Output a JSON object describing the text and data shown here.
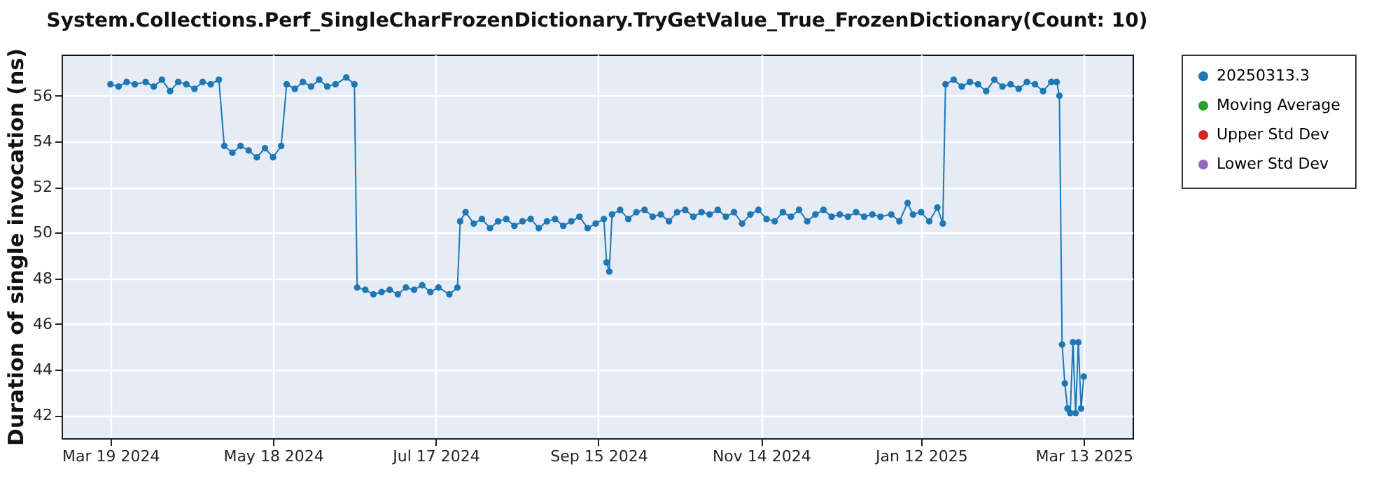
{
  "chart_data": {
    "type": "line",
    "title": "System.Collections.Perf_SingleCharFrozenDictionary.TryGetValue_True_FrozenDictionary(Count: 10)",
    "ylabel": "Duration of single invocation (ns)",
    "xlim": [
      "2024-03-01",
      "2025-03-31"
    ],
    "xticks": [
      {
        "value": "2024-03-19",
        "label": "Mar 19 2024"
      },
      {
        "value": "2024-05-18",
        "label": "May 18 2024"
      },
      {
        "value": "2024-07-17",
        "label": "Jul 17 2024"
      },
      {
        "value": "2024-09-15",
        "label": "Sep 15 2024"
      },
      {
        "value": "2024-11-14",
        "label": "Nov 14 2024"
      },
      {
        "value": "2025-01-12",
        "label": "Jan 12 2025"
      },
      {
        "value": "2025-03-13",
        "label": "Mar 13 2025"
      }
    ],
    "ylim": [
      41,
      57.8
    ],
    "yticks": [
      42,
      44,
      46,
      48,
      50,
      52,
      54,
      56
    ],
    "grid": true,
    "legend": "right",
    "marker": "circle",
    "series": [
      {
        "name": "20250313.3",
        "color": "#1f77b4",
        "x": [
          "2024-03-19",
          "2024-03-22",
          "2024-03-25",
          "2024-03-28",
          "2024-04-01",
          "2024-04-04",
          "2024-04-07",
          "2024-04-10",
          "2024-04-13",
          "2024-04-16",
          "2024-04-19",
          "2024-04-22",
          "2024-04-25",
          "2024-04-28",
          "2024-04-30",
          "2024-05-03",
          "2024-05-06",
          "2024-05-09",
          "2024-05-12",
          "2024-05-15",
          "2024-05-18",
          "2024-05-21",
          "2024-05-23",
          "2024-05-26",
          "2024-05-29",
          "2024-06-01",
          "2024-06-04",
          "2024-06-07",
          "2024-06-10",
          "2024-06-14",
          "2024-06-17",
          "2024-06-18",
          "2024-06-21",
          "2024-06-24",
          "2024-06-27",
          "2024-06-30",
          "2024-07-03",
          "2024-07-06",
          "2024-07-09",
          "2024-07-12",
          "2024-07-15",
          "2024-07-18",
          "2024-07-22",
          "2024-07-25",
          "2024-07-26",
          "2024-07-28",
          "2024-07-31",
          "2024-08-03",
          "2024-08-06",
          "2024-08-09",
          "2024-08-12",
          "2024-08-15",
          "2024-08-18",
          "2024-08-21",
          "2024-08-24",
          "2024-08-27",
          "2024-08-30",
          "2024-09-02",
          "2024-09-05",
          "2024-09-08",
          "2024-09-11",
          "2024-09-14",
          "2024-09-17",
          "2024-09-18",
          "2024-09-19",
          "2024-09-20",
          "2024-09-23",
          "2024-09-26",
          "2024-09-29",
          "2024-10-02",
          "2024-10-05",
          "2024-10-08",
          "2024-10-11",
          "2024-10-14",
          "2024-10-17",
          "2024-10-20",
          "2024-10-23",
          "2024-10-26",
          "2024-10-29",
          "2024-11-01",
          "2024-11-04",
          "2024-11-07",
          "2024-11-10",
          "2024-11-13",
          "2024-11-16",
          "2024-11-19",
          "2024-11-22",
          "2024-11-25",
          "2024-11-28",
          "2024-12-01",
          "2024-12-04",
          "2024-12-07",
          "2024-12-10",
          "2024-12-13",
          "2024-12-16",
          "2024-12-19",
          "2024-12-22",
          "2024-12-25",
          "2024-12-28",
          "2025-01-01",
          "2025-01-04",
          "2025-01-07",
          "2025-01-09",
          "2025-01-12",
          "2025-01-15",
          "2025-01-18",
          "2025-01-20",
          "2025-01-21",
          "2025-01-24",
          "2025-01-27",
          "2025-01-30",
          "2025-02-02",
          "2025-02-05",
          "2025-02-08",
          "2025-02-11",
          "2025-02-14",
          "2025-02-17",
          "2025-02-20",
          "2025-02-23",
          "2025-02-26",
          "2025-03-01",
          "2025-03-03",
          "2025-03-04",
          "2025-03-05",
          "2025-03-06",
          "2025-03-07",
          "2025-03-08",
          "2025-03-09",
          "2025-03-10",
          "2025-03-11",
          "2025-03-12",
          "2025-03-13"
        ],
        "values": [
          56.5,
          56.4,
          56.6,
          56.5,
          56.6,
          56.4,
          56.7,
          56.2,
          56.6,
          56.5,
          56.3,
          56.6,
          56.5,
          56.7,
          53.8,
          53.5,
          53.8,
          53.6,
          53.3,
          53.7,
          53.3,
          53.8,
          56.5,
          56.3,
          56.6,
          56.4,
          56.7,
          56.4,
          56.5,
          56.8,
          56.5,
          47.6,
          47.5,
          47.3,
          47.4,
          47.5,
          47.3,
          47.6,
          47.5,
          47.7,
          47.4,
          47.6,
          47.3,
          47.6,
          50.5,
          50.9,
          50.4,
          50.6,
          50.2,
          50.5,
          50.6,
          50.3,
          50.5,
          50.6,
          50.2,
          50.5,
          50.6,
          50.3,
          50.5,
          50.7,
          50.2,
          50.4,
          50.6,
          48.7,
          48.3,
          50.8,
          51.0,
          50.6,
          50.9,
          51.0,
          50.7,
          50.8,
          50.5,
          50.9,
          51.0,
          50.7,
          50.9,
          50.8,
          51.0,
          50.7,
          50.9,
          50.4,
          50.8,
          51.0,
          50.6,
          50.5,
          50.9,
          50.7,
          51.0,
          50.5,
          50.8,
          51.0,
          50.7,
          50.8,
          50.7,
          50.9,
          50.7,
          50.8,
          50.7,
          50.8,
          50.5,
          51.3,
          50.8,
          50.9,
          50.5,
          51.1,
          50.4,
          56.5,
          56.7,
          56.4,
          56.6,
          56.5,
          56.2,
          56.7,
          56.4,
          56.5,
          56.3,
          56.6,
          56.5,
          56.2,
          56.6,
          56.6,
          56.0,
          45.1,
          43.4,
          42.3,
          42.1,
          45.2,
          42.1,
          45.2,
          42.3,
          43.7
        ]
      },
      {
        "name": "Moving Average",
        "color": "#2ca02c"
      },
      {
        "name": "Upper Std Dev",
        "color": "#d62728"
      },
      {
        "name": "Lower Std Dev",
        "color": "#9467bd"
      }
    ]
  }
}
